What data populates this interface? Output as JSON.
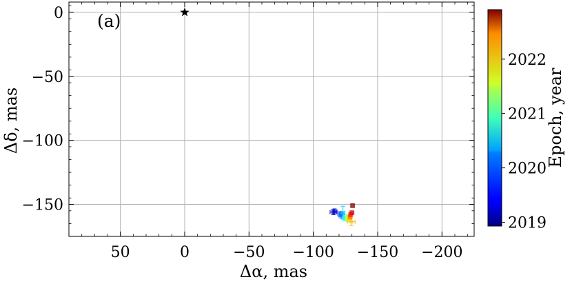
{
  "chart_data": {
    "type": "scatter",
    "panel_label": "(a)",
    "xlabel": "Δα, mas",
    "ylabel": "Δδ, mas",
    "xlim": [
      90,
      -225
    ],
    "ylim": [
      -175,
      8
    ],
    "x_inverted": true,
    "grid": true,
    "x_ticks": [
      50,
      0,
      -50,
      -100,
      -150,
      -200
    ],
    "x_tick_labels": [
      "50",
      "0",
      "−50",
      "−100",
      "−150",
      "−200"
    ],
    "y_ticks": [
      0,
      -50,
      -100,
      -150
    ],
    "y_tick_labels": [
      "0",
      "−50",
      "−100",
      "−150"
    ],
    "reference_point": {
      "x": 0,
      "y": 0,
      "marker": "star",
      "color": "#000000"
    },
    "colorbar": {
      "label": "Epoch, year",
      "range": [
        2018.93,
        2022.91
      ],
      "colormap": "jet",
      "ticks": [
        2019,
        2020,
        2021,
        2022
      ],
      "tick_labels": [
        "2019",
        "2020",
        "2021",
        "2022"
      ]
    },
    "points": [
      {
        "epoch": 2019.0,
        "x": -115.5,
        "y": -156.0,
        "xerr": 2.5,
        "yerr": 2.0
      },
      {
        "epoch": 2019.3,
        "x": -116.5,
        "y": -155.5,
        "xerr": 2.0,
        "yerr": 2.0
      },
      {
        "epoch": 2019.6,
        "x": -121.0,
        "y": -157.5,
        "xerr": 2.0,
        "yerr": 2.0
      },
      {
        "epoch": 2019.9,
        "x": -122.0,
        "y": -159.0,
        "xerr": 2.0,
        "yerr": 2.0
      },
      {
        "epoch": 2020.2,
        "x": -123.0,
        "y": -156.5,
        "xerr": 1.5,
        "yerr": 5.0
      },
      {
        "epoch": 2020.5,
        "x": -124.5,
        "y": -161.0,
        "xerr": 2.0,
        "yerr": 2.0
      },
      {
        "epoch": 2020.8,
        "x": -126.0,
        "y": -160.0,
        "xerr": 2.0,
        "yerr": 2.0
      },
      {
        "epoch": 2021.1,
        "x": -127.0,
        "y": -161.5,
        "xerr": 2.0,
        "yerr": 2.0
      },
      {
        "epoch": 2021.4,
        "x": -127.5,
        "y": -160.5,
        "xerr": 2.0,
        "yerr": 2.0
      },
      {
        "epoch": 2021.7,
        "x": -129.5,
        "y": -163.5,
        "xerr": 3.0,
        "yerr": 3.0
      },
      {
        "epoch": 2022.0,
        "x": -128.5,
        "y": -160.0,
        "xerr": 1.5,
        "yerr": 1.5
      },
      {
        "epoch": 2022.3,
        "x": -129.0,
        "y": -158.0,
        "xerr": 1.5,
        "yerr": 1.5
      },
      {
        "epoch": 2022.6,
        "x": -130.0,
        "y": -156.5,
        "xerr": 1.5,
        "yerr": 1.5
      },
      {
        "epoch": 2022.9,
        "x": -130.5,
        "y": -151.0,
        "xerr": 1.5,
        "yerr": 1.5
      }
    ]
  }
}
